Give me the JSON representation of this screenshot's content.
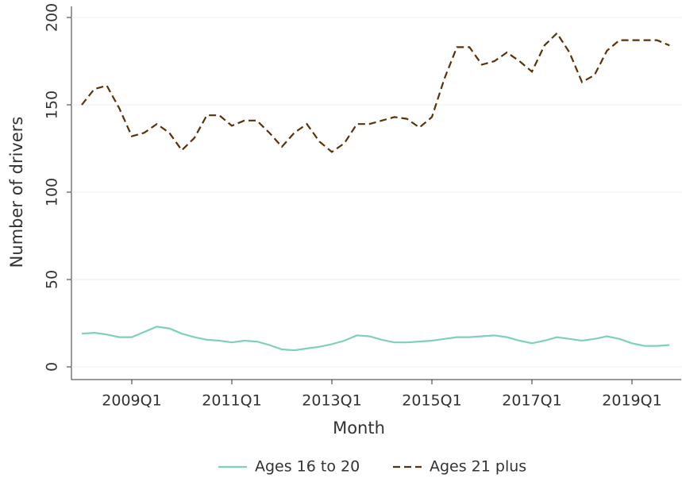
{
  "chart_data": {
    "type": "line",
    "x_label": "Month",
    "y_label": "Number of drivers",
    "categories": [
      null,
      null,
      null,
      null,
      "2009Q1",
      null,
      null,
      null,
      null,
      null,
      null,
      null,
      "2011Q1",
      null,
      null,
      null,
      null,
      null,
      null,
      null,
      "2013Q1",
      null,
      null,
      null,
      null,
      null,
      null,
      null,
      "2015Q1",
      null,
      null,
      null,
      null,
      null,
      null,
      null,
      "2017Q1",
      null,
      null,
      null,
      null,
      null,
      null,
      null,
      "2019Q1",
      null,
      null,
      null
    ],
    "series": [
      {
        "name": "Ages 16 to 20",
        "color": "#7fcfbd",
        "dash": false,
        "values": [
          19,
          19.5,
          18.5,
          17,
          17,
          20,
          23,
          22,
          19,
          17,
          15.5,
          15,
          14,
          15,
          14.5,
          12.5,
          10,
          9.5,
          10.5,
          11.5,
          13,
          15,
          18,
          17.5,
          15.5,
          14,
          14,
          14.5,
          15,
          16,
          17,
          17,
          17.5,
          18,
          17,
          15,
          13.5,
          15,
          17,
          16,
          15,
          16,
          17.5,
          16,
          13.5,
          12,
          12,
          12.5
        ]
      },
      {
        "name": "Ages 21 plus",
        "color": "#5a3208",
        "dash": true,
        "values": [
          150,
          159,
          161,
          148,
          132,
          134,
          139,
          134,
          124,
          131,
          144,
          144,
          138,
          141,
          141,
          134,
          126,
          134,
          139,
          129,
          123,
          128,
          139,
          139,
          141,
          143,
          142,
          137,
          143,
          165,
          183,
          183,
          173,
          175,
          180,
          175,
          169,
          184,
          191,
          180,
          163,
          167,
          181,
          187,
          187,
          187,
          187,
          184
        ]
      }
    ],
    "ylim": [
      0,
      200
    ],
    "yticks": [
      0,
      50,
      100,
      150,
      200
    ],
    "grid": true
  }
}
